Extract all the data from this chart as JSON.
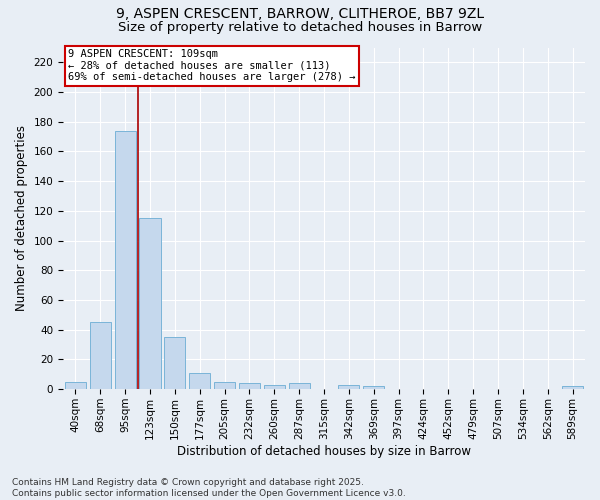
{
  "title_line1": "9, ASPEN CRESCENT, BARROW, CLITHEROE, BB7 9ZL",
  "title_line2": "Size of property relative to detached houses in Barrow",
  "xlabel": "Distribution of detached houses by size in Barrow",
  "ylabel": "Number of detached properties",
  "bar_color": "#c5d8ed",
  "bar_edge_color": "#7ab4d8",
  "background_color": "#e8eef5",
  "categories": [
    "40sqm",
    "68sqm",
    "95sqm",
    "123sqm",
    "150sqm",
    "177sqm",
    "205sqm",
    "232sqm",
    "260sqm",
    "287sqm",
    "315sqm",
    "342sqm",
    "369sqm",
    "397sqm",
    "424sqm",
    "452sqm",
    "479sqm",
    "507sqm",
    "534sqm",
    "562sqm",
    "589sqm"
  ],
  "values": [
    5,
    45,
    174,
    115,
    35,
    11,
    5,
    4,
    3,
    4,
    0,
    3,
    2,
    0,
    0,
    0,
    0,
    0,
    0,
    0,
    2
  ],
  "ylim": [
    0,
    230
  ],
  "yticks": [
    0,
    20,
    40,
    60,
    80,
    100,
    120,
    140,
    160,
    180,
    200,
    220
  ],
  "vline_x": 2.5,
  "vline_color": "#aa0000",
  "annotation_title": "9 ASPEN CRESCENT: 109sqm",
  "annotation_line1": "← 28% of detached houses are smaller (113)",
  "annotation_line2": "69% of semi-detached houses are larger (278) →",
  "annotation_box_color": "#ffffff",
  "annotation_box_edge": "#cc0000",
  "footer_line1": "Contains HM Land Registry data © Crown copyright and database right 2025.",
  "footer_line2": "Contains public sector information licensed under the Open Government Licence v3.0.",
  "title_fontsize": 10,
  "subtitle_fontsize": 9.5,
  "axis_label_fontsize": 8.5,
  "tick_fontsize": 7.5,
  "annotation_fontsize": 7.5,
  "footer_fontsize": 6.5
}
